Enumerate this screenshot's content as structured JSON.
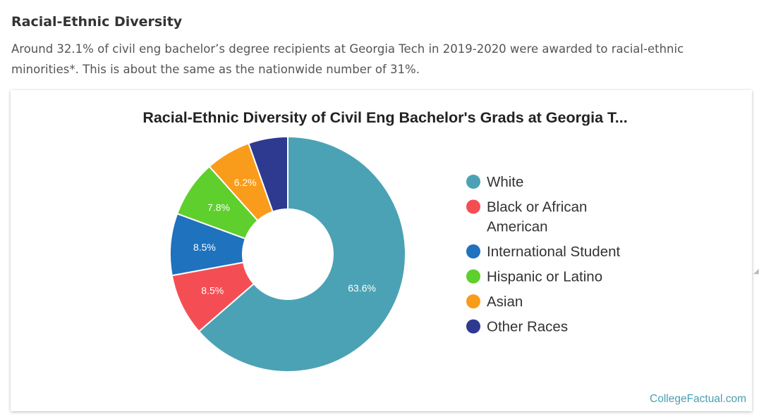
{
  "section": {
    "title": "Racial-Ethnic Diversity",
    "description": "Around 32.1% of civil eng bachelor’s degree recipients at Georgia Tech in 2019-2020 were awarded to racial-ethnic minorities*. This is about the same as the nationwide number of 31%."
  },
  "chart_data": {
    "type": "pie",
    "donut": true,
    "title": "Racial-Ethnic Diversity of Civil Eng Bachelor's Grads at Georgia T...",
    "categories": [
      "White",
      "Black or African American",
      "International Student",
      "Hispanic or Latino",
      "Asian",
      "Other Races"
    ],
    "values": [
      63.6,
      8.5,
      8.5,
      7.8,
      6.2,
      5.4
    ],
    "labels": [
      "63.6%",
      "8.5%",
      "8.5%",
      "7.8%",
      "6.2%",
      ""
    ],
    "colors": [
      "#4ba2b4",
      "#f44e54",
      "#1f72be",
      "#5ecf2c",
      "#f99c1b",
      "#2d3a8f"
    ],
    "legend": {
      "position": "right",
      "lines": [
        [
          "White"
        ],
        [
          "Black or African",
          "American"
        ],
        [
          "International Student"
        ],
        [
          "Hispanic or Latino"
        ],
        [
          "Asian"
        ],
        [
          "Other Races"
        ]
      ]
    }
  },
  "credit": "CollegeFactual.com"
}
